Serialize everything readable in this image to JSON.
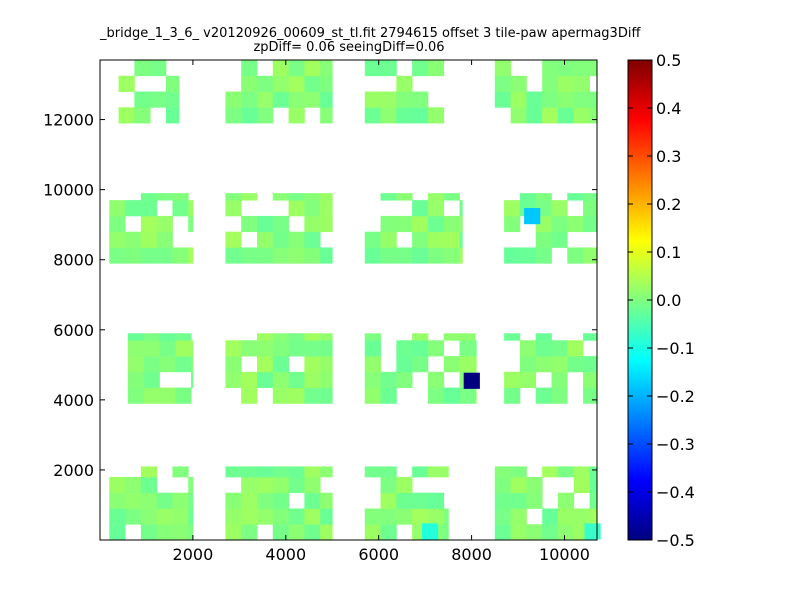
{
  "chart_data": {
    "type": "heatmap",
    "title": "_bridge_1_3_6_ v20120926_00609_st_tl.fit 2794615 offset 3 tile-paw apermag3Diff",
    "subtitle": "zpDiff= 0.06 seeingDiff=0.06",
    "xlabel": "",
    "ylabel": "",
    "xlim": [
      0,
      10700
    ],
    "ylim": [
      0,
      13700
    ],
    "x_ticks": [
      2000,
      4000,
      6000,
      8000,
      10000
    ],
    "y_ticks": [
      2000,
      4000,
      6000,
      8000,
      10000,
      12000
    ],
    "colorbar": {
      "colormap": "jet",
      "vmin": -0.5,
      "vmax": 0.5,
      "ticks": [
        "0.5",
        "0.4",
        "0.3",
        "0.2",
        "0.1",
        "0.0",
        "−0.1",
        "−0.2",
        "−0.3",
        "−0.4",
        "−0.5"
      ]
    },
    "cell_size": [
      340,
      450
    ],
    "grid": false,
    "outliers": [
      {
        "x": 8000,
        "y": 4550,
        "value": -0.5
      },
      {
        "x": 9300,
        "y": 9250,
        "value": -0.18
      },
      {
        "x": 7100,
        "y": 250,
        "value": -0.09
      },
      {
        "x": 10600,
        "y": 250,
        "value": -0.07
      }
    ],
    "blocks": [
      {
        "x": [
          400,
          1700
        ],
        "y": [
          11900,
          13700
        ]
      },
      {
        "x": [
          2700,
          5000
        ],
        "y": [
          11900,
          13700
        ]
      },
      {
        "x": [
          5700,
          7400
        ],
        "y": [
          11900,
          13700
        ]
      },
      {
        "x": [
          8500,
          10700
        ],
        "y": [
          11900,
          13700
        ]
      },
      {
        "x": [
          200,
          2000
        ],
        "y": [
          7900,
          9900
        ]
      },
      {
        "x": [
          2700,
          5000
        ],
        "y": [
          7900,
          9900
        ]
      },
      {
        "x": [
          5700,
          7800
        ],
        "y": [
          7900,
          9900
        ]
      },
      {
        "x": [
          8700,
          10700
        ],
        "y": [
          7900,
          9900
        ]
      },
      {
        "x": [
          600,
          2000
        ],
        "y": [
          3900,
          5900
        ]
      },
      {
        "x": [
          2700,
          5000
        ],
        "y": [
          3900,
          5900
        ]
      },
      {
        "x": [
          5700,
          8100
        ],
        "y": [
          3900,
          5900
        ]
      },
      {
        "x": [
          8700,
          10700
        ],
        "y": [
          3900,
          5900
        ]
      },
      {
        "x": [
          200,
          2000
        ],
        "y": [
          0,
          2100
        ]
      },
      {
        "x": [
          2700,
          5000
        ],
        "y": [
          0,
          2100
        ]
      },
      {
        "x": [
          5700,
          7500
        ],
        "y": [
          0,
          2100
        ]
      },
      {
        "x": [
          8500,
          10700
        ],
        "y": [
          0,
          2100
        ]
      }
    ]
  }
}
